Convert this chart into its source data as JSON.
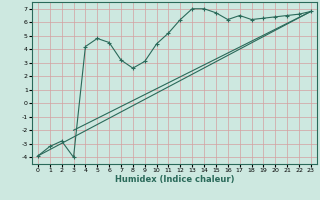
{
  "xlabel": "Humidex (Indice chaleur)",
  "background_color": "#cde8e0",
  "grid_color": "#d4a0a0",
  "line_color": "#2a6a5a",
  "xlim": [
    -0.5,
    23.5
  ],
  "ylim": [
    -4.5,
    7.5
  ],
  "xticks": [
    0,
    1,
    2,
    3,
    4,
    5,
    6,
    7,
    8,
    9,
    10,
    11,
    12,
    13,
    14,
    15,
    16,
    17,
    18,
    19,
    20,
    21,
    22,
    23
  ],
  "yticks": [
    -4,
    -3,
    -2,
    -1,
    0,
    1,
    2,
    3,
    4,
    5,
    6,
    7
  ],
  "wavy_x": [
    0,
    1,
    2,
    3,
    4,
    5,
    6,
    7,
    8,
    9,
    10,
    11,
    12,
    13,
    14,
    15,
    16,
    17,
    18,
    19,
    20,
    21,
    22,
    23
  ],
  "wavy_y": [
    -3.9,
    -3.2,
    -2.8,
    -4.0,
    4.2,
    4.8,
    4.5,
    3.2,
    2.6,
    3.1,
    4.4,
    5.2,
    6.2,
    7.0,
    7.0,
    6.7,
    6.2,
    6.5,
    6.2,
    6.3,
    6.4,
    6.5,
    6.6,
    6.8
  ],
  "line1_x": [
    0,
    23
  ],
  "line1_y": [
    -3.9,
    6.8
  ],
  "line2_x": [
    3,
    23
  ],
  "line2_y": [
    -2.0,
    6.8
  ],
  "tick_fontsize": 4.5,
  "xlabel_fontsize": 6.0
}
